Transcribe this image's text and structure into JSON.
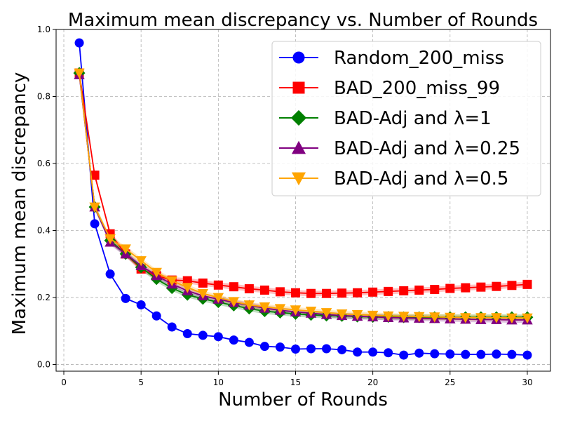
{
  "chart_data": {
    "type": "line",
    "title": "Maximum mean discrepancy vs. Number of Rounds",
    "xlabel": "Number of Rounds",
    "ylabel": "Maximum mean discrepancy",
    "xlim": [
      -0.5,
      31.5
    ],
    "ylim": [
      -0.02,
      1.0
    ],
    "xticks": [
      0,
      5,
      10,
      15,
      20,
      25,
      30
    ],
    "yticks": [
      0.0,
      0.2,
      0.4,
      0.6,
      0.8,
      1.0
    ],
    "grid": true,
    "legend_position": "top-right",
    "x": [
      1,
      2,
      3,
      4,
      5,
      6,
      7,
      8,
      9,
      10,
      11,
      12,
      13,
      14,
      15,
      16,
      17,
      18,
      19,
      20,
      21,
      22,
      23,
      24,
      25,
      26,
      27,
      28,
      29,
      30
    ],
    "series": [
      {
        "name": "Random_200_miss",
        "color": "#0000ff",
        "marker": "circle",
        "values": [
          0.96,
          0.42,
          0.27,
          0.197,
          0.178,
          0.145,
          0.112,
          0.092,
          0.087,
          0.083,
          0.073,
          0.066,
          0.054,
          0.052,
          0.046,
          0.047,
          0.047,
          0.044,
          0.037,
          0.037,
          0.035,
          0.028,
          0.034,
          0.032,
          0.031,
          0.03,
          0.03,
          0.031,
          0.03,
          0.028
        ]
      },
      {
        "name": "BAD_200_miss_99",
        "color": "#ff0000",
        "marker": "square",
        "values": [
          0.87,
          0.565,
          0.39,
          0.33,
          0.285,
          0.265,
          0.252,
          0.25,
          0.243,
          0.237,
          0.232,
          0.226,
          0.222,
          0.217,
          0.214,
          0.212,
          0.212,
          0.213,
          0.214,
          0.216,
          0.218,
          0.22,
          0.222,
          0.224,
          0.227,
          0.229,
          0.231,
          0.233,
          0.236,
          0.239
        ]
      },
      {
        "name": "BAD-Adj and λ=1",
        "color": "#008000",
        "marker": "diamond",
        "values": [
          0.87,
          0.47,
          0.37,
          0.33,
          0.29,
          0.255,
          0.228,
          0.208,
          0.196,
          0.186,
          0.176,
          0.167,
          0.159,
          0.155,
          0.151,
          0.148,
          0.146,
          0.145,
          0.143,
          0.142,
          0.142,
          0.141,
          0.141,
          0.141,
          0.141,
          0.141,
          0.141,
          0.141,
          0.141,
          0.141
        ]
      },
      {
        "name": "BAD-Adj and λ=0.25",
        "color": "#800080",
        "marker": "triangle-up",
        "values": [
          0.865,
          0.47,
          0.365,
          0.33,
          0.295,
          0.265,
          0.24,
          0.22,
          0.205,
          0.195,
          0.185,
          0.177,
          0.168,
          0.162,
          0.157,
          0.153,
          0.149,
          0.146,
          0.144,
          0.142,
          0.14,
          0.139,
          0.138,
          0.137,
          0.136,
          0.135,
          0.134,
          0.134,
          0.133,
          0.133
        ]
      },
      {
        "name": "BAD-Adj and λ=0.5",
        "color": "#ffa500",
        "marker": "triangle-down",
        "values": [
          0.87,
          0.47,
          0.375,
          0.345,
          0.31,
          0.275,
          0.25,
          0.23,
          0.212,
          0.2,
          0.188,
          0.178,
          0.172,
          0.167,
          0.163,
          0.159,
          0.155,
          0.151,
          0.149,
          0.147,
          0.145,
          0.144,
          0.143,
          0.142,
          0.141,
          0.14,
          0.14,
          0.14,
          0.139,
          0.139
        ]
      }
    ]
  }
}
